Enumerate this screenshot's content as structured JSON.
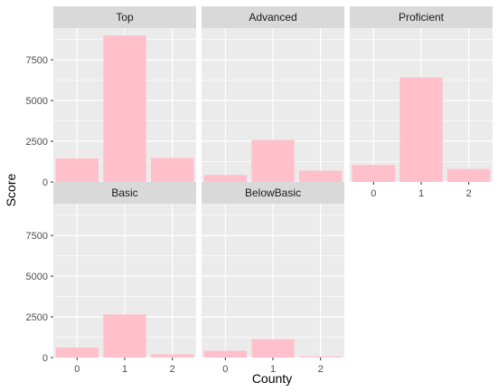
{
  "chart_data": {
    "type": "bar",
    "xlabel": "County",
    "ylabel": "Score",
    "categories": [
      "0",
      "1",
      "2"
    ],
    "ylim": [
      0,
      9450
    ],
    "yticks": [
      0,
      2500,
      5000,
      7500
    ],
    "yticklabels": [
      "0",
      "2500",
      "5000",
      "7500"
    ],
    "grid": true,
    "bar_color": "#FFC0CB",
    "panel_background": "#EBEBEB",
    "strip_background": "#D9D9D9",
    "series": [
      {
        "name": "Top",
        "values": [
          1450,
          9000,
          1480
        ]
      },
      {
        "name": "Advanced",
        "values": [
          430,
          2580,
          700
        ]
      },
      {
        "name": "Proficient",
        "values": [
          1050,
          6420,
          800
        ]
      },
      {
        "name": "Basic",
        "values": [
          620,
          2650,
          200
        ]
      },
      {
        "name": "BelowBasic",
        "values": [
          420,
          1130,
          70
        ]
      }
    ]
  }
}
